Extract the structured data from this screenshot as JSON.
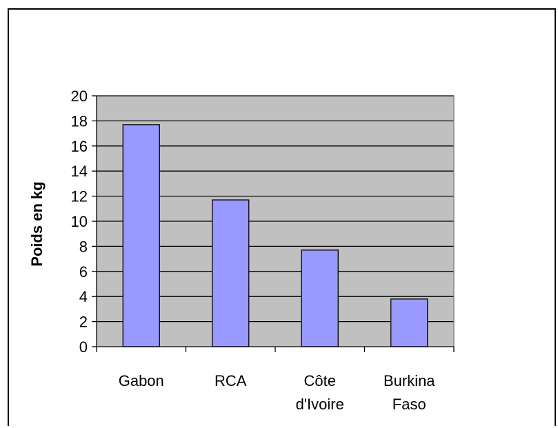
{
  "chart_data": {
    "type": "bar",
    "categories": [
      [
        "Gabon"
      ],
      [
        "RCA"
      ],
      [
        "Côte",
        "d'Ivoire"
      ],
      [
        "Burkina",
        "Faso"
      ]
    ],
    "values": [
      17.7,
      11.7,
      7.7,
      3.8
    ],
    "ylabel": "Poids en kg",
    "xlabel": "",
    "ylim": [
      0,
      20
    ],
    "yticks": [
      0,
      2,
      4,
      6,
      8,
      10,
      12,
      14,
      16,
      18,
      20
    ],
    "grid": true,
    "legend": "none",
    "colors": {
      "plot_background": "#c0c0c0",
      "bar_fill": "#9999ff",
      "bar_stroke": "#000000",
      "gridline": "#000000"
    }
  }
}
